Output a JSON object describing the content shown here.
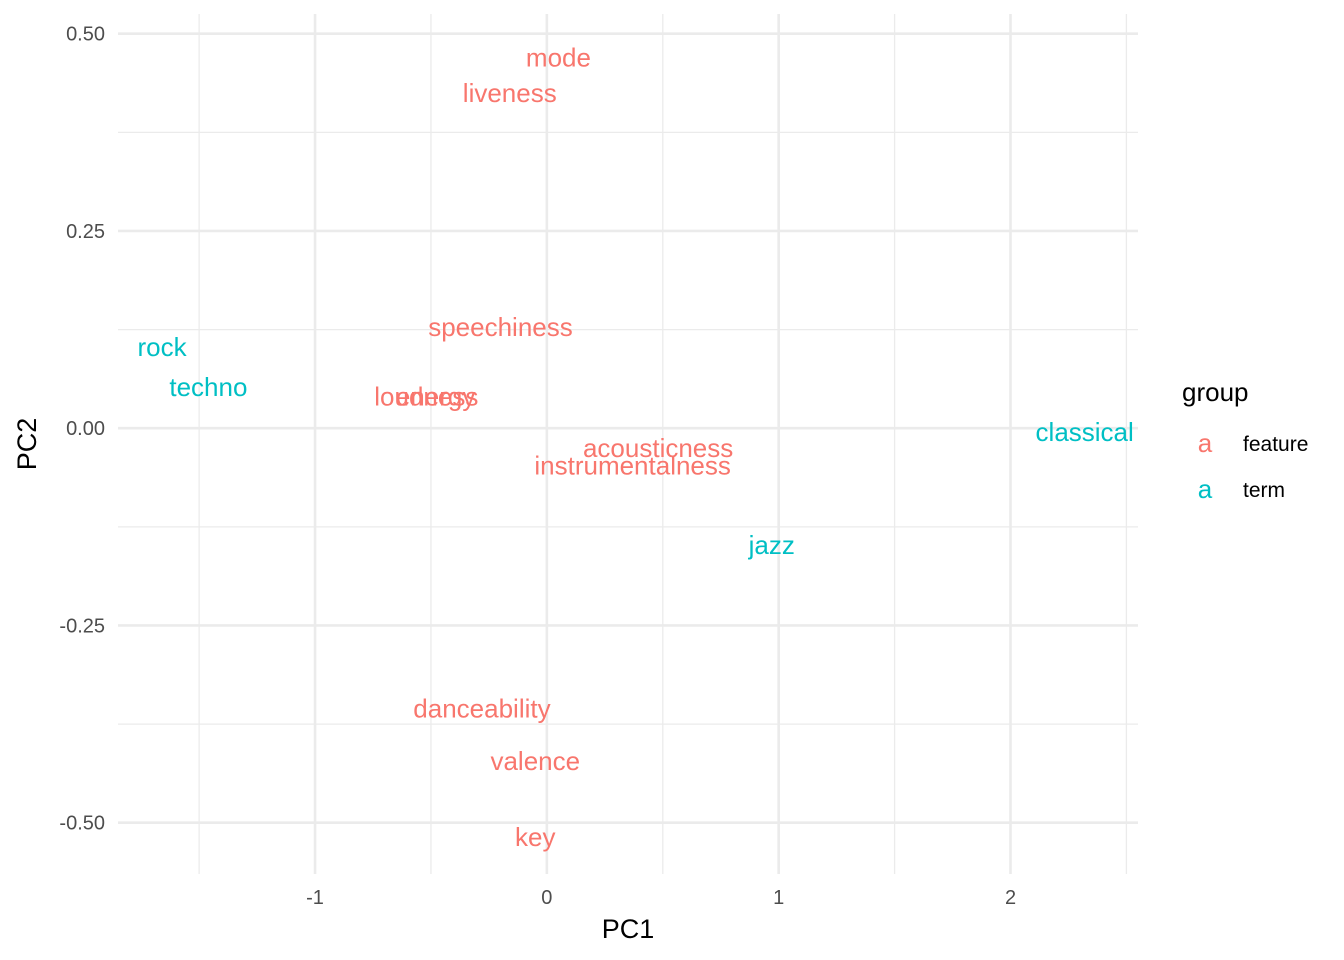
{
  "colors": {
    "feature": "#F8766D",
    "term": "#00BFC4",
    "grid": "#ebebeb",
    "tick_text": "#4d4d4d"
  },
  "chart_data": {
    "type": "scatter",
    "title": "",
    "xlabel": "PC1",
    "ylabel": "PC2",
    "xlim": [
      -1.85,
      2.55
    ],
    "ylim": [
      -0.565,
      0.525
    ],
    "x_ticks": [
      {
        "value": -1,
        "label": "-1"
      },
      {
        "value": 0,
        "label": "0"
      },
      {
        "value": 1,
        "label": "1"
      },
      {
        "value": 2,
        "label": "2"
      }
    ],
    "x_minor_ticks": [
      -1.5,
      -0.5,
      0.5,
      1.5,
      2.5
    ],
    "y_ticks": [
      {
        "value": 0.5,
        "label": "0.50"
      },
      {
        "value": 0.25,
        "label": "0.25"
      },
      {
        "value": 0.0,
        "label": "0.00"
      },
      {
        "value": -0.25,
        "label": "-0.25"
      },
      {
        "value": -0.5,
        "label": "-0.50"
      }
    ],
    "y_minor_ticks": [
      0.375,
      0.125,
      -0.125,
      -0.375
    ],
    "grid": true,
    "legend": {
      "title": "group",
      "placement": "right",
      "key_glyph": "a",
      "entries": [
        {
          "group": "feature",
          "label": "feature"
        },
        {
          "group": "term",
          "label": "term"
        }
      ]
    },
    "points": [
      {
        "label": "mode",
        "x": 0.05,
        "y": 0.47,
        "group": "feature"
      },
      {
        "label": "liveness",
        "x": -0.16,
        "y": 0.425,
        "group": "feature"
      },
      {
        "label": "speechiness",
        "x": -0.2,
        "y": 0.128,
        "group": "feature"
      },
      {
        "label": "loudness",
        "x": -0.52,
        "y": 0.04,
        "group": "feature"
      },
      {
        "label": "energy",
        "x": -0.48,
        "y": 0.04,
        "group": "feature"
      },
      {
        "label": "acousticness",
        "x": 0.48,
        "y": -0.025,
        "group": "feature"
      },
      {
        "label": "instrumentalness",
        "x": 0.37,
        "y": -0.047,
        "group": "feature"
      },
      {
        "label": "danceability",
        "x": -0.28,
        "y": -0.355,
        "group": "feature"
      },
      {
        "label": "valence",
        "x": -0.05,
        "y": -0.422,
        "group": "feature"
      },
      {
        "label": "key",
        "x": -0.05,
        "y": -0.518,
        "group": "feature"
      },
      {
        "label": "rock",
        "x": -1.66,
        "y": 0.103,
        "group": "term"
      },
      {
        "label": "techno",
        "x": -1.46,
        "y": 0.052,
        "group": "term"
      },
      {
        "label": "classical",
        "x": 2.32,
        "y": -0.005,
        "group": "term"
      },
      {
        "label": "jazz",
        "x": 0.97,
        "y": -0.148,
        "group": "term"
      }
    ]
  }
}
